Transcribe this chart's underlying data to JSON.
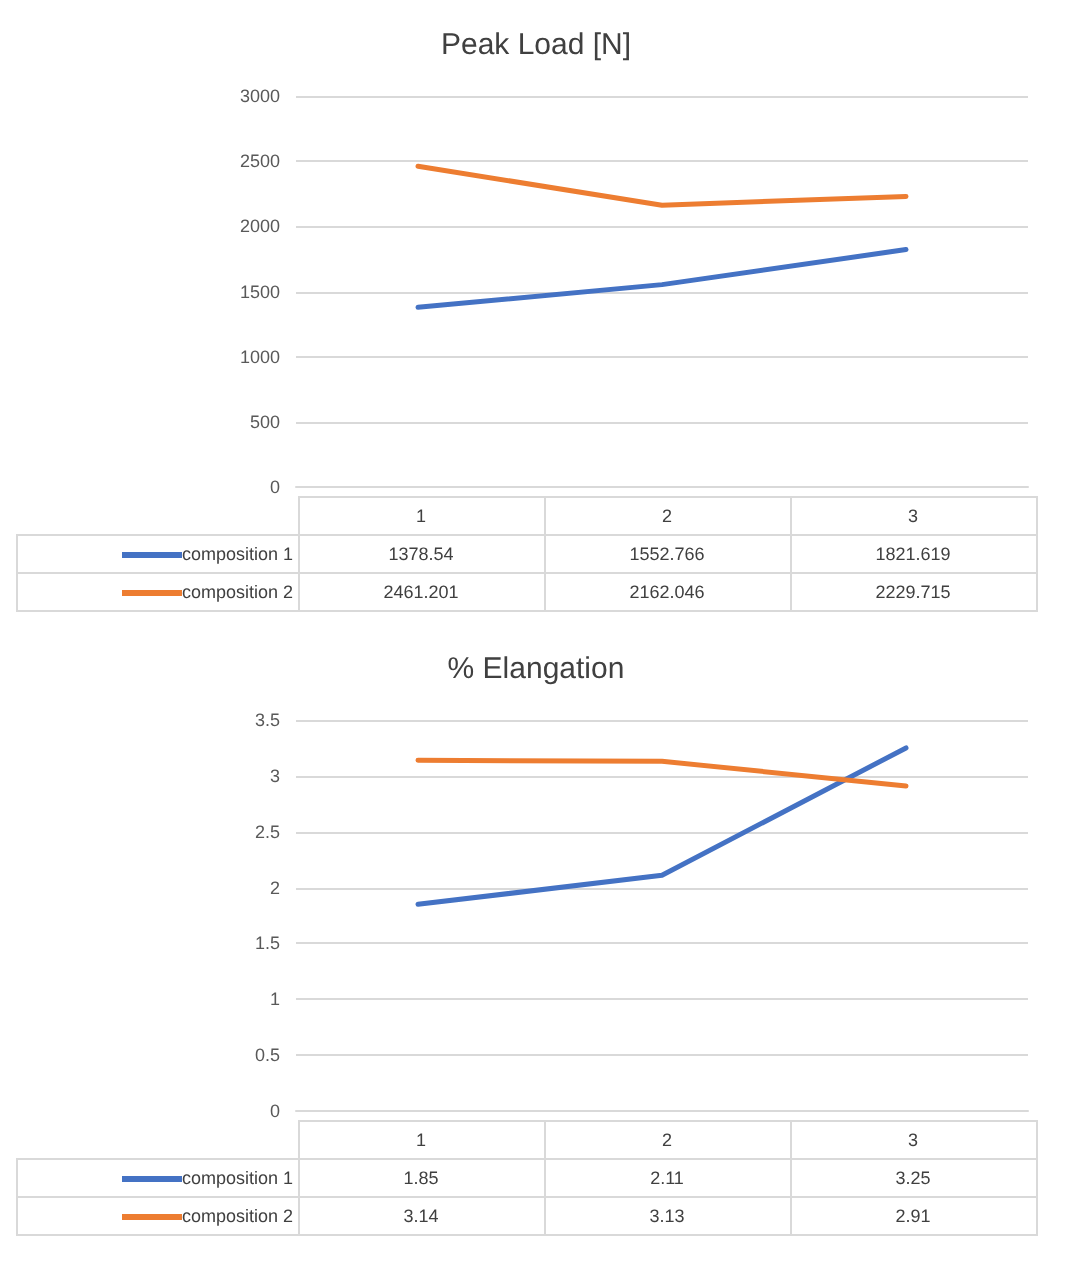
{
  "chart_data": [
    {
      "type": "line",
      "title": "Peak Load [N]",
      "categories": [
        "1",
        "2",
        "3"
      ],
      "series": [
        {
          "name": "composition 1",
          "color": "#4472c4",
          "values": [
            1378.54,
            1552.766,
            1821.619
          ]
        },
        {
          "name": "composition 2",
          "color": "#ed7d31",
          "values": [
            2461.201,
            2162.046,
            2229.715
          ]
        }
      ],
      "ylim": [
        0,
        3000
      ],
      "yticks": [
        0,
        500,
        1000,
        1500,
        2000,
        2500,
        3000
      ],
      "grid": "y",
      "legend": "bottom",
      "data_labels": true,
      "marker": "none"
    },
    {
      "type": "line",
      "title": "% Elangation",
      "categories": [
        "1",
        "2",
        "3"
      ],
      "series": [
        {
          "name": "composition 1",
          "color": "#4472c4",
          "values": [
            1.85,
            2.11,
            3.25
          ]
        },
        {
          "name": "composition 2",
          "color": "#ed7d31",
          "values": [
            3.14,
            3.13,
            2.91
          ]
        }
      ],
      "ylim": [
        0,
        3.5
      ],
      "yticks": [
        0,
        0.5,
        1,
        1.5,
        2,
        2.5,
        3,
        3.5
      ],
      "grid": "y",
      "legend": "bottom",
      "data_labels": true,
      "marker": "none"
    }
  ]
}
